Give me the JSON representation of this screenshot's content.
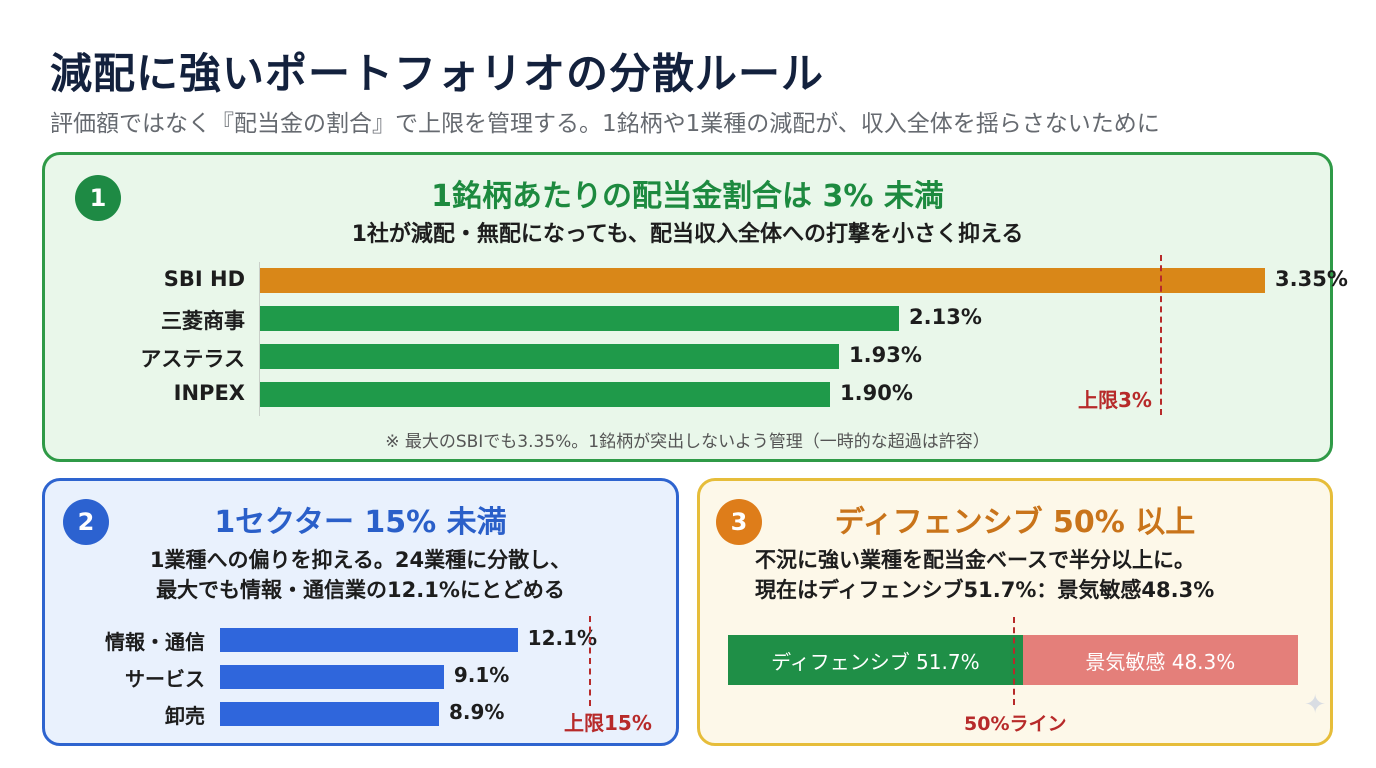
{
  "header": {
    "title": "減配に強いポートフォリオの分散ルール",
    "subtitle": "評価額ではなく『配当金の割合』で上限を管理する。1銘柄や1業種の減配が、収入全体を揺らさないために"
  },
  "rule1": {
    "number": "1",
    "title": "1銘柄あたりの配当金割合は 3% 未満",
    "description": "1社が減配・無配になっても、配当収入全体への打撃を小さく抑える",
    "limit_label": "上限3%",
    "note": "※ 最大のSBIでも3.35%。1銘柄が突出しないよう管理（一時的な超過は許容）"
  },
  "rule2": {
    "number": "2",
    "title": "1セクター 15% 未満",
    "description_line1": "1業種への偏りを抑える。24業種に分散し、",
    "description_line2": "最大でも情報・通信業の12.1%にとどめる",
    "limit_label": "上限15%"
  },
  "rule3": {
    "number": "3",
    "title": "ディフェンシブ 50% 以上",
    "description_line1": "不況に強い業種を配当金ベースで半分以上に。",
    "description_line2": "現在はディフェンシブ51.7%：景気敏感48.3%",
    "line_label": "50%ライン"
  },
  "chart_data": [
    {
      "type": "bar",
      "orientation": "horizontal",
      "categories": [
        "SBI HD",
        "三菱商事",
        "アステラス",
        "INPEX"
      ],
      "values": [
        3.35,
        2.13,
        1.93,
        1.9
      ],
      "value_labels": [
        "3.35%",
        "2.13%",
        "1.93%",
        "1.90%"
      ],
      "threshold": 3,
      "colors": [
        "#d98718",
        "#1f9a4a",
        "#1f9a4a",
        "#1f9a4a"
      ]
    },
    {
      "type": "bar",
      "orientation": "horizontal",
      "categories": [
        "情報・通信",
        "サービス",
        "卸売"
      ],
      "values": [
        12.1,
        9.1,
        8.9
      ],
      "value_labels": [
        "12.1%",
        "9.1%",
        "8.9%"
      ],
      "threshold": 15,
      "colors": [
        "#2f66dc",
        "#2f66dc",
        "#2f66dc"
      ]
    },
    {
      "type": "bar",
      "orientation": "stacked-horizontal",
      "categories": [
        "ディフェンシブ",
        "景気敏感"
      ],
      "values": [
        51.7,
        48.3
      ],
      "segment_labels": [
        "ディフェンシブ 51.7%",
        "景気敏感 48.3%"
      ],
      "threshold": 50,
      "colors": [
        "#1f8f47",
        "#e47f7a"
      ]
    }
  ]
}
